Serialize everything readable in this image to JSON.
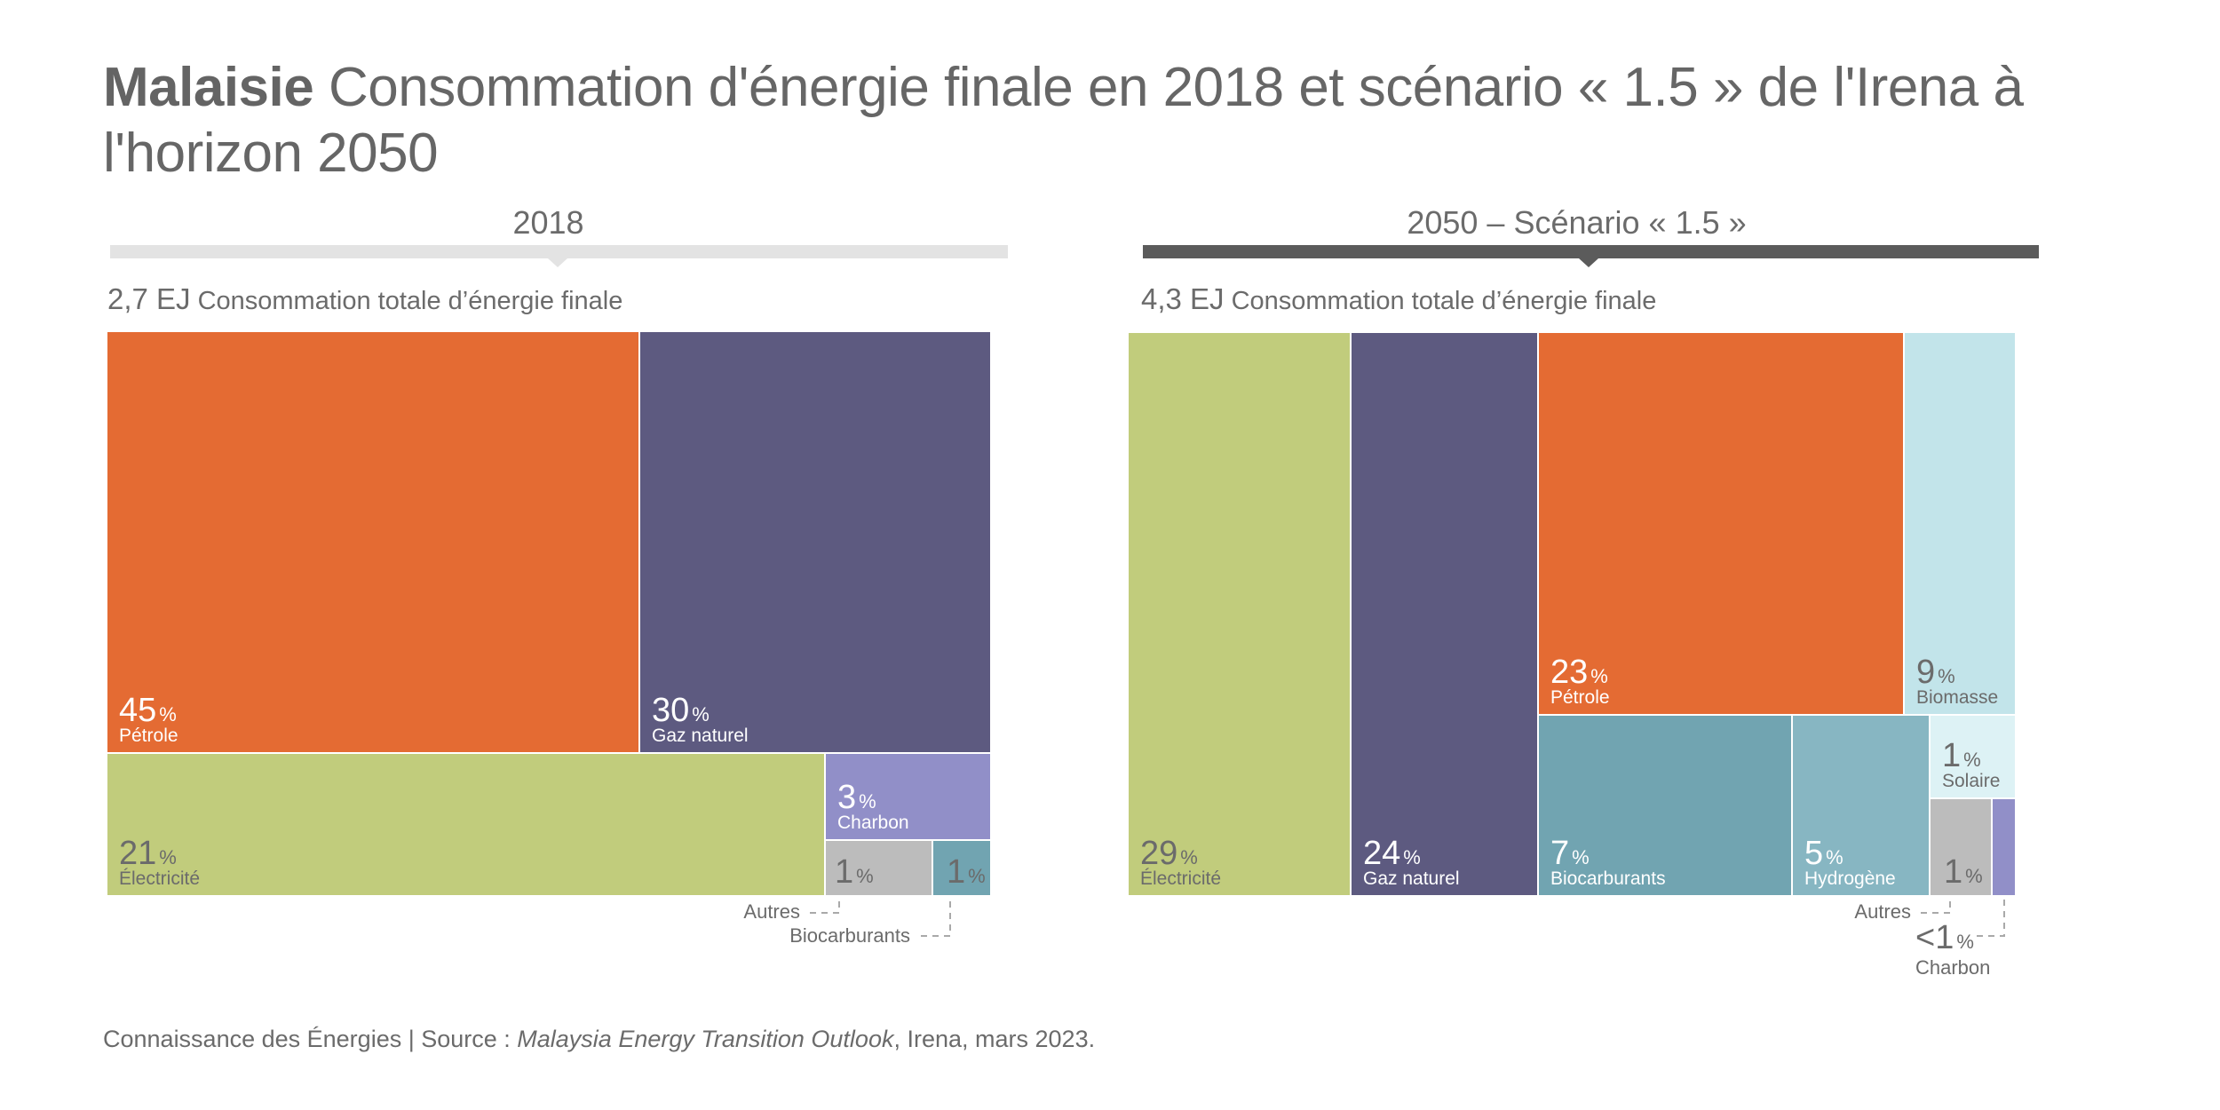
{
  "title": {
    "bold": "Malaisie",
    "rest": " Consommation d'énergie finale en 2018 et scénario « 1.5 » de l'Irena à l'horizon 2050"
  },
  "footer": {
    "prefix": "Connaissance des Énergies | Source : ",
    "italic": "Malaysia Energy Transition Outlook",
    "suffix": ", Irena, mars 2023."
  },
  "colors": {
    "petrole": "#e46b33",
    "gaz": "#5d5a80",
    "electricite": "#c1cc7c",
    "charbon": "#918fc8",
    "autres": "#bcbcbc",
    "biocarburants": "#71a4b1",
    "hydrogene": "#87b6c2",
    "biomasse": "#c2e4ea",
    "solaire": "#ddf2f5",
    "text_dark": "#6b6b6b",
    "text_light": "#ffffff",
    "band_2018": "#e3e3e3",
    "band_2050": "#5b5b5b"
  },
  "chart_data": [
    {
      "type": "treemap",
      "title": "2018",
      "total_value": "2,7 EJ",
      "total_label": "Consommation totale d’énergie finale",
      "unit": "%",
      "items": [
        {
          "key": "petrole",
          "label": "Pétrole",
          "value": 45,
          "display": "45"
        },
        {
          "key": "gaz",
          "label": "Gaz naturel",
          "value": 30,
          "display": "30"
        },
        {
          "key": "electricite",
          "label": "Électricité",
          "value": 21,
          "display": "21"
        },
        {
          "key": "charbon",
          "label": "Charbon",
          "value": 3,
          "display": "3"
        },
        {
          "key": "autres",
          "label": "Autres",
          "value": 1,
          "display": "1"
        },
        {
          "key": "biocarburants",
          "label": "Biocarburants",
          "value": 1,
          "display": "1"
        }
      ]
    },
    {
      "type": "treemap",
      "title": "2050 – Scénario « 1.5 »",
      "total_value": "4,3 EJ",
      "total_label": "Consommation totale d’énergie finale",
      "unit": "%",
      "items": [
        {
          "key": "electricite",
          "label": "Électricité",
          "value": 29,
          "display": "29"
        },
        {
          "key": "gaz",
          "label": "Gaz naturel",
          "value": 24,
          "display": "24"
        },
        {
          "key": "petrole",
          "label": "Pétrole",
          "value": 23,
          "display": "23"
        },
        {
          "key": "biomasse",
          "label": "Biomasse",
          "value": 9,
          "display": "9"
        },
        {
          "key": "biocarburants",
          "label": "Biocarburants",
          "value": 7,
          "display": "7"
        },
        {
          "key": "hydrogene",
          "label": "Hydrogène",
          "value": 5,
          "display": "5"
        },
        {
          "key": "solaire",
          "label": "Solaire",
          "value": 1,
          "display": "1"
        },
        {
          "key": "autres",
          "label": "Autres",
          "value": 1,
          "display": "1"
        },
        {
          "key": "charbon",
          "label": "Charbon",
          "value": 0.5,
          "display": "<1"
        }
      ]
    }
  ]
}
